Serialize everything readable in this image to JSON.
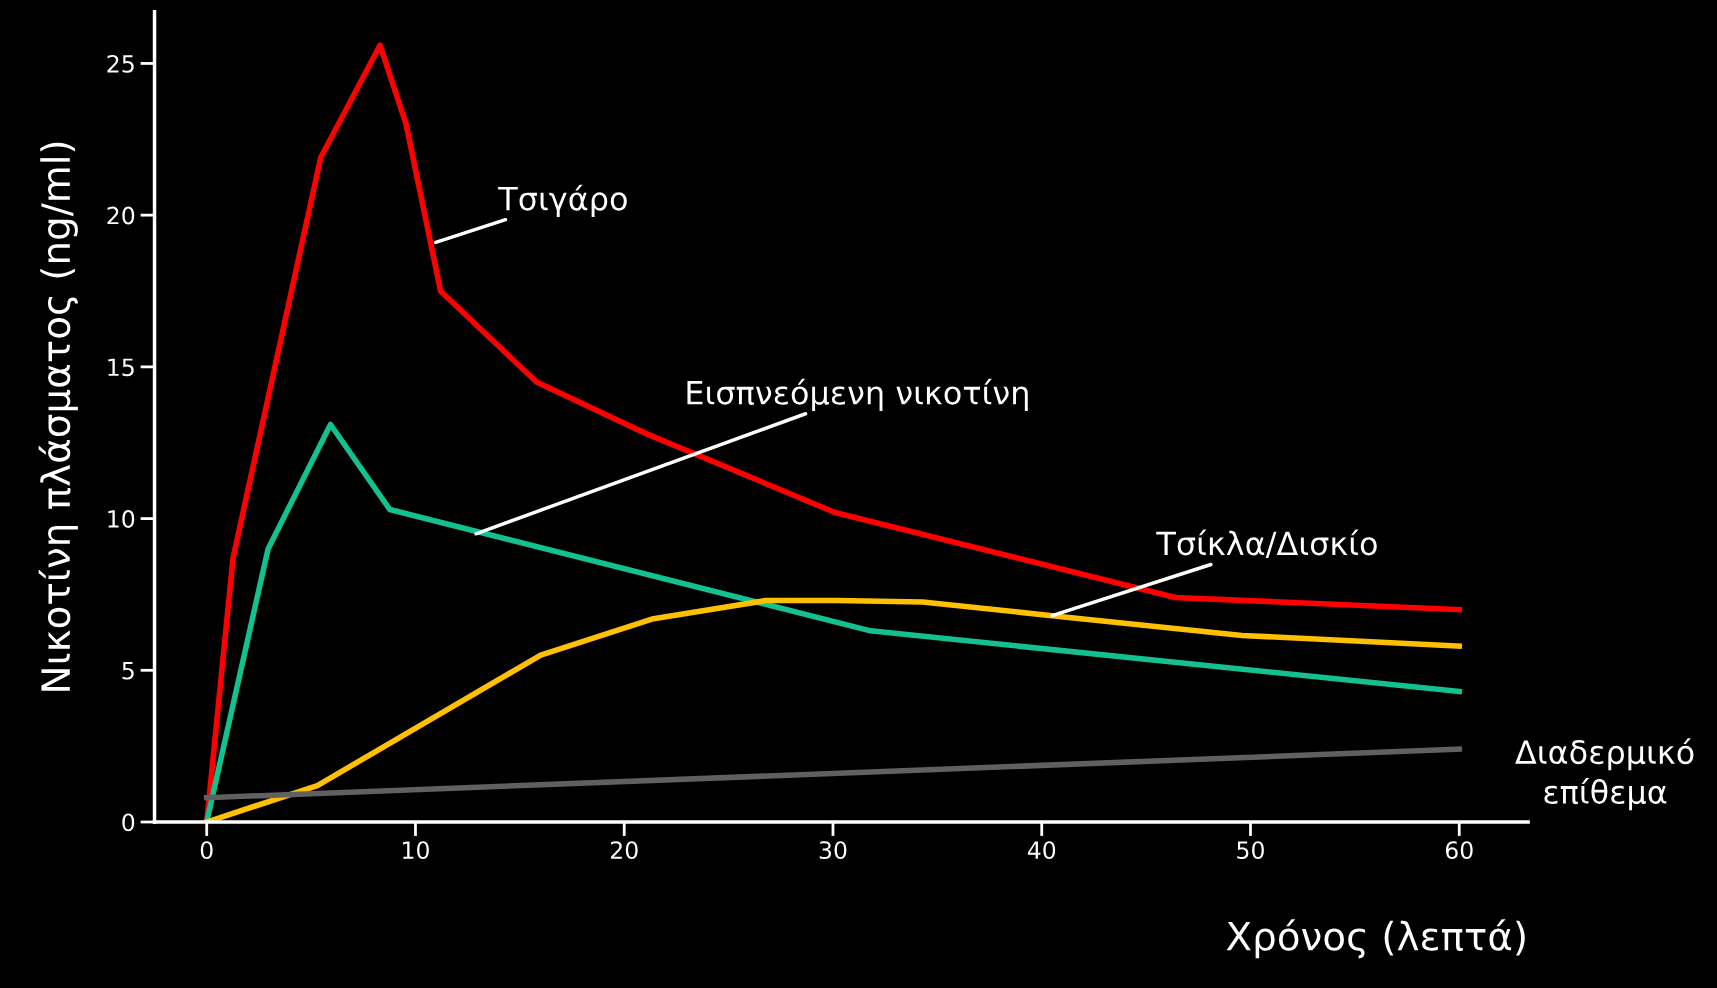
{
  "chart_data": {
    "type": "line",
    "xlabel": "Χρόνος (λεπτά)",
    "ylabel": "Νικοτίνη πλάσματος (ng/ml)",
    "xlim": [
      -2.5,
      63.3
    ],
    "ylim": [
      0,
      26.7
    ],
    "xticks": [
      0,
      10,
      20,
      30,
      40,
      50,
      60
    ],
    "yticks": [
      0,
      5,
      10,
      15,
      20,
      25
    ],
    "grid": false,
    "legend": false,
    "marker": "none",
    "line_style": "solid",
    "series": [
      {
        "color": "#ff0000",
        "x": [
          0,
          1.26,
          5.46,
          8.3,
          9.55,
          11.2,
          15.8,
          21.05,
          30.1,
          46.4,
          60
        ],
        "values": [
          0,
          8.7,
          21.9,
          25.6,
          23.0,
          17.5,
          14.5,
          12.8,
          10.2,
          7.4,
          7.0
        ]
      },
      {
        "color": "#13c08f",
        "x": [
          0,
          2.94,
          5.93,
          8.77,
          31.8,
          60
        ],
        "values": [
          0,
          9.0,
          13.1,
          10.3,
          6.3,
          4.3
        ]
      },
      {
        "color": "#ffc000",
        "x": [
          0,
          5.3,
          16.0,
          21.4,
          26.8,
          30.2,
          34.3,
          40.5,
          49.6,
          60
        ],
        "values": [
          0,
          1.2,
          5.5,
          6.7,
          7.3,
          7.3,
          7.25,
          6.8,
          6.15,
          5.8
        ]
      },
      {
        "color": "#606060",
        "x": [
          0,
          60
        ],
        "values": [
          0.8,
          2.4
        ]
      }
    ],
    "annotations": [
      {
        "text": "Τσιγάρο",
        "x": 10.97,
        "y": 19.1
      },
      {
        "text": "Εισπνεόμενη νικοτίνη",
        "x": 12.9,
        "y": 9.5
      },
      {
        "text": "Τσίκλα/Δισκίο",
        "x": 40.5,
        "y": 6.8
      },
      {
        "text": "Διαδερμικό\nεπίθεμα",
        "x": 60,
        "y": 2.4
      }
    ]
  }
}
